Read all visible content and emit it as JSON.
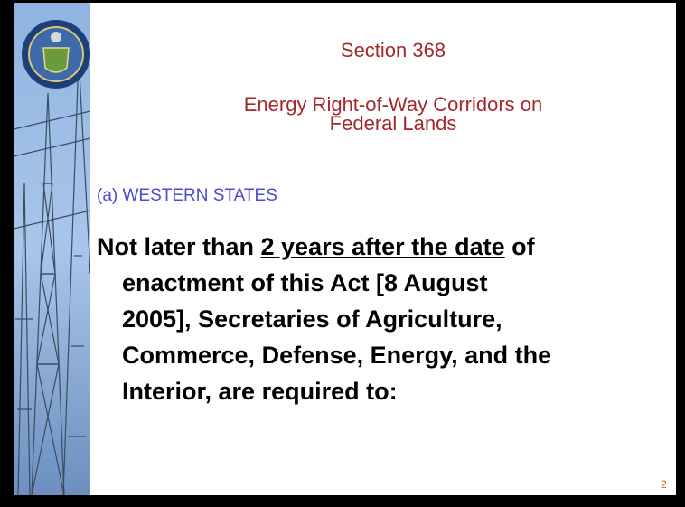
{
  "slide": {
    "title": "Section 368",
    "subtitle_lines": [
      "Energy Right-of-Way Corridors on",
      "Federal Lands"
    ],
    "section_label": "(a) WESTERN STATES",
    "body": {
      "first_line": {
        "before": "Not later than ",
        "underlined": "2 years after the date",
        "after": " of"
      },
      "lines": [
        "enactment of this Act [8 August",
        "2005], Secretaries of Agriculture,",
        "Commerce, Defense, Energy, and the",
        "Interior, are required to:"
      ]
    },
    "page_number": "2"
  }
}
